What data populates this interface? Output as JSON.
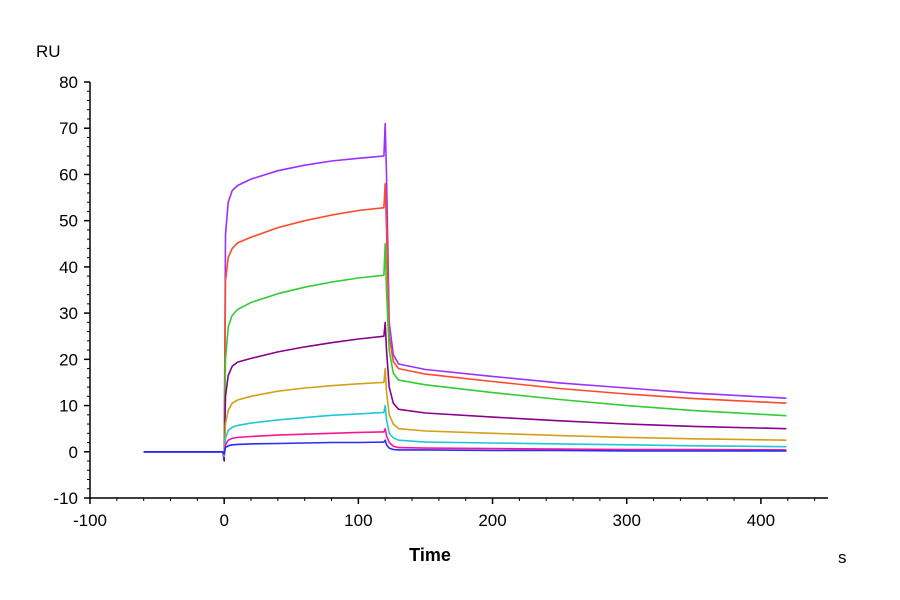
{
  "chart_data": {
    "type": "line",
    "ylabel": "RU",
    "xlabel": "Time",
    "xunit": "s",
    "xlim": [
      -100,
      450
    ],
    "ylim": [
      -10,
      80
    ],
    "xticks": [
      -100,
      0,
      100,
      200,
      300,
      400
    ],
    "yticks": [
      -10,
      0,
      10,
      20,
      30,
      40,
      50,
      60,
      70,
      80
    ],
    "grid": false,
    "series": [
      {
        "color": "#9b30ff",
        "points": [
          [
            -60,
            0
          ],
          [
            -1,
            0
          ],
          [
            0,
            -1.5
          ],
          [
            1,
            47
          ],
          [
            3,
            54
          ],
          [
            6,
            56.5
          ],
          [
            10,
            57.6
          ],
          [
            20,
            59
          ],
          [
            40,
            60.8
          ],
          [
            60,
            62
          ],
          [
            80,
            62.9
          ],
          [
            100,
            63.5
          ],
          [
            119,
            64
          ],
          [
            120,
            71
          ],
          [
            121,
            60
          ],
          [
            123,
            28
          ],
          [
            126,
            21
          ],
          [
            130,
            19
          ],
          [
            150,
            17.8
          ],
          [
            200,
            16.3
          ],
          [
            250,
            14.9
          ],
          [
            300,
            13.8
          ],
          [
            350,
            12.7
          ],
          [
            419,
            11.6
          ]
        ]
      },
      {
        "color": "#ff4a2a",
        "points": [
          [
            -60,
            0
          ],
          [
            -1,
            0
          ],
          [
            0,
            -1
          ],
          [
            1,
            37
          ],
          [
            3,
            42
          ],
          [
            6,
            44
          ],
          [
            10,
            45.2
          ],
          [
            20,
            46.4
          ],
          [
            40,
            48.5
          ],
          [
            60,
            50
          ],
          [
            80,
            51.2
          ],
          [
            100,
            52.2
          ],
          [
            119,
            52.8
          ],
          [
            120,
            58
          ],
          [
            121,
            48
          ],
          [
            123,
            25
          ],
          [
            126,
            19.5
          ],
          [
            130,
            18
          ],
          [
            150,
            16.8
          ],
          [
            200,
            15.2
          ],
          [
            250,
            13.7
          ],
          [
            300,
            12.5
          ],
          [
            350,
            11.5
          ],
          [
            419,
            10.5
          ]
        ]
      },
      {
        "color": "#33cc33",
        "points": [
          [
            -60,
            0
          ],
          [
            -1,
            0
          ],
          [
            0,
            -1
          ],
          [
            1,
            20
          ],
          [
            3,
            27
          ],
          [
            6,
            29.5
          ],
          [
            10,
            30.8
          ],
          [
            20,
            32.3
          ],
          [
            40,
            34.2
          ],
          [
            60,
            35.6
          ],
          [
            80,
            36.7
          ],
          [
            100,
            37.6
          ],
          [
            119,
            38.2
          ],
          [
            120,
            45
          ],
          [
            121,
            35
          ],
          [
            123,
            22
          ],
          [
            126,
            17
          ],
          [
            130,
            15.5
          ],
          [
            150,
            14.5
          ],
          [
            200,
            12.8
          ],
          [
            250,
            11.3
          ],
          [
            300,
            10
          ],
          [
            350,
            8.9
          ],
          [
            419,
            7.8
          ]
        ]
      },
      {
        "color": "#8b008b",
        "points": [
          [
            -60,
            0
          ],
          [
            -1,
            0
          ],
          [
            0,
            -2
          ],
          [
            1,
            12
          ],
          [
            3,
            16.5
          ],
          [
            6,
            18.5
          ],
          [
            10,
            19.4
          ],
          [
            20,
            20.2
          ],
          [
            40,
            21.6
          ],
          [
            60,
            22.7
          ],
          [
            80,
            23.6
          ],
          [
            100,
            24.4
          ],
          [
            119,
            25
          ],
          [
            120,
            28
          ],
          [
            121,
            22
          ],
          [
            123,
            14
          ],
          [
            126,
            10.5
          ],
          [
            130,
            9.2
          ],
          [
            150,
            8.4
          ],
          [
            200,
            7.5
          ],
          [
            250,
            6.7
          ],
          [
            300,
            6
          ],
          [
            350,
            5.5
          ],
          [
            419,
            5
          ]
        ]
      },
      {
        "color": "#d4a017",
        "points": [
          [
            -60,
            0
          ],
          [
            -1,
            0
          ],
          [
            0,
            -1
          ],
          [
            1,
            6
          ],
          [
            3,
            9
          ],
          [
            6,
            10.5
          ],
          [
            10,
            11.2
          ],
          [
            20,
            12
          ],
          [
            40,
            13.1
          ],
          [
            60,
            13.8
          ],
          [
            80,
            14.3
          ],
          [
            100,
            14.7
          ],
          [
            119,
            15
          ],
          [
            120,
            18
          ],
          [
            121,
            13
          ],
          [
            123,
            8
          ],
          [
            126,
            6
          ],
          [
            130,
            5
          ],
          [
            150,
            4.5
          ],
          [
            200,
            4
          ],
          [
            250,
            3.5
          ],
          [
            300,
            3.1
          ],
          [
            350,
            2.8
          ],
          [
            419,
            2.5
          ]
        ]
      },
      {
        "color": "#1ec8d8",
        "points": [
          [
            -60,
            0
          ],
          [
            -1,
            0
          ],
          [
            0,
            -1
          ],
          [
            1,
            3
          ],
          [
            3,
            4.6
          ],
          [
            6,
            5.3
          ],
          [
            10,
            5.7
          ],
          [
            20,
            6.2
          ],
          [
            40,
            6.9
          ],
          [
            60,
            7.4
          ],
          [
            80,
            7.9
          ],
          [
            100,
            8.2
          ],
          [
            119,
            8.5
          ],
          [
            120,
            10
          ],
          [
            121,
            7
          ],
          [
            123,
            4
          ],
          [
            126,
            3
          ],
          [
            130,
            2.5
          ],
          [
            150,
            2.1
          ],
          [
            200,
            1.9
          ],
          [
            250,
            1.7
          ],
          [
            300,
            1.5
          ],
          [
            350,
            1.3
          ],
          [
            419,
            1.1
          ]
        ]
      },
      {
        "color": "#ff1493",
        "points": [
          [
            -60,
            0
          ],
          [
            -1,
            0
          ],
          [
            0,
            -0.5
          ],
          [
            1,
            1.5
          ],
          [
            3,
            2.5
          ],
          [
            6,
            2.9
          ],
          [
            10,
            3.1
          ],
          [
            20,
            3.3
          ],
          [
            40,
            3.6
          ],
          [
            60,
            3.8
          ],
          [
            80,
            4
          ],
          [
            100,
            4.2
          ],
          [
            119,
            4.3
          ],
          [
            120,
            5
          ],
          [
            121,
            3.5
          ],
          [
            123,
            2
          ],
          [
            126,
            1.2
          ],
          [
            130,
            0.9
          ],
          [
            150,
            0.8
          ],
          [
            200,
            0.7
          ],
          [
            250,
            0.6
          ],
          [
            300,
            0.5
          ],
          [
            350,
            0.5
          ],
          [
            419,
            0.4
          ]
        ]
      },
      {
        "color": "#2a2aff",
        "points": [
          [
            -60,
            0
          ],
          [
            -1,
            0
          ],
          [
            0,
            -0.5
          ],
          [
            1,
            0.9
          ],
          [
            3,
            1.3
          ],
          [
            6,
            1.5
          ],
          [
            10,
            1.6
          ],
          [
            20,
            1.7
          ],
          [
            40,
            1.8
          ],
          [
            60,
            1.9
          ],
          [
            80,
            2
          ],
          [
            100,
            2
          ],
          [
            119,
            2.1
          ],
          [
            120,
            2.5
          ],
          [
            121,
            1.5
          ],
          [
            123,
            0.8
          ],
          [
            126,
            0.5
          ],
          [
            130,
            0.4
          ],
          [
            150,
            0.4
          ],
          [
            200,
            0.3
          ],
          [
            250,
            0.3
          ],
          [
            300,
            0.2
          ],
          [
            350,
            0.2
          ],
          [
            419,
            0.2
          ]
        ]
      }
    ]
  }
}
